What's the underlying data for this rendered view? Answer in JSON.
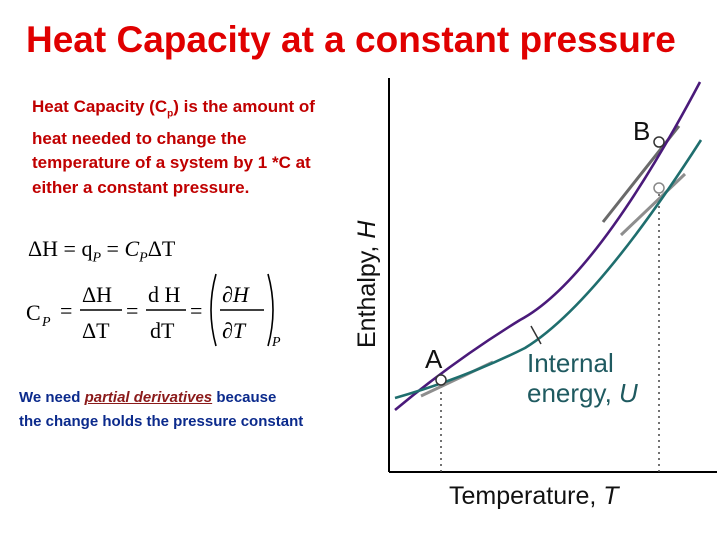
{
  "title": "Heat Capacity at a constant pressure",
  "definition": {
    "line1_prefix": "Heat Capacity (C",
    "line1_sub": "p",
    "line1_suffix": ") is the",
    "rest": "amount of heat needed to change the temperature of a system by 1 *C at either a constant pressure."
  },
  "equations": {
    "eq1": {
      "lhs": "ΔH = q",
      "sub1": "P",
      "mid": " = ",
      "c": "C",
      "sub2": "P",
      "end": "ΔT"
    },
    "eq2": {
      "lhs": "C",
      "sub": "P",
      "frac1_num": "ΔH",
      "frac1_den": "ΔT",
      "frac2_num": "d H",
      "frac2_den": "dT",
      "frac3_num": "∂H",
      "frac3_den": "∂T",
      "outer_sub": "P"
    }
  },
  "note": {
    "prefix": "We need ",
    "emphasis": "partial derivatives",
    "suffix1": " because",
    "line2": "the change holds the pressure constant"
  },
  "diagram": {
    "y_axis_label": "Enthalpy, ",
    "y_axis_var": "H",
    "x_axis_label": "Temperature, ",
    "x_axis_var": "T",
    "point_a": "A",
    "point_b": "B",
    "internal_energy_line1": "Internal",
    "internal_energy_line2": "energy, ",
    "internal_energy_var": "U",
    "colors": {
      "enthalpy_curve": "#4a1a7a",
      "energy_curve": "#1f6e6e",
      "tangent": "#8e8e8e",
      "axis": "#000000"
    }
  }
}
